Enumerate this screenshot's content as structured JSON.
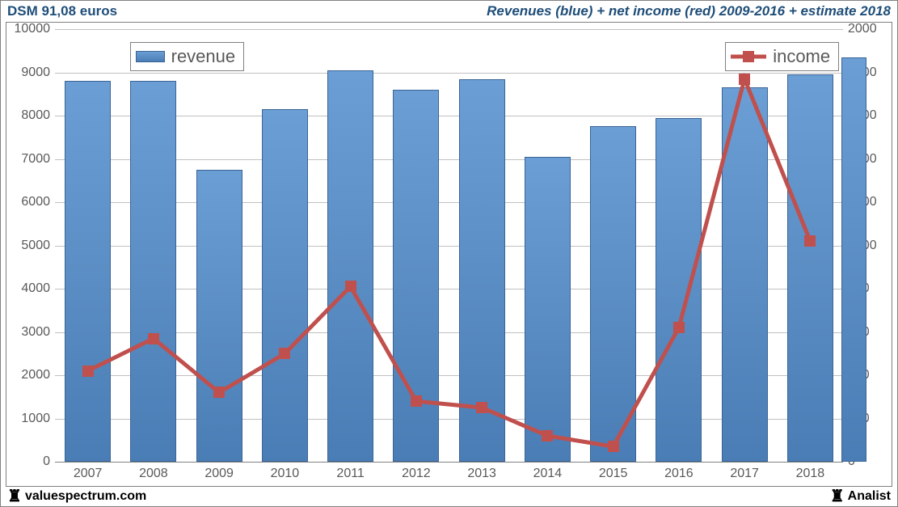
{
  "header": {
    "left": "DSM 91,08 euros",
    "right": "Revenues (blue) + net income (red) 2009-2016 + estimate 2018"
  },
  "footer": {
    "left": "valuespectrum.com",
    "right": "Analist"
  },
  "chart": {
    "type": "bar+line-dual-axis",
    "background_color": "#ffffff",
    "grid_color": "#c0c0c0",
    "axis_color": "#808080",
    "label_color": "#595959",
    "label_fontsize": 16,
    "legend_fontsize": 22,
    "categories": [
      "2007",
      "2008",
      "2009",
      "2010",
      "2011",
      "2012",
      "2013",
      "2014",
      "2015",
      "2016",
      "2017",
      "2018"
    ],
    "estimate_extra_bar": true,
    "revenue": {
      "values": [
        8800,
        8800,
        6750,
        8150,
        9050,
        8600,
        8850,
        7050,
        7750,
        7950,
        8650,
        8950
      ],
      "estimate_value": 9350,
      "bar_color_top": "#6a9ed4",
      "bar_color_bottom": "#4a7db5",
      "bar_border": "#3a6494",
      "bar_width_ratio": 0.7
    },
    "income": {
      "values": [
        420,
        570,
        320,
        500,
        810,
        280,
        250,
        120,
        70,
        620,
        1770,
        1020
      ],
      "line_color": "#c0504d",
      "line_width": 5,
      "marker_size": 14,
      "marker_shape": "square"
    },
    "y_left": {
      "min": 0,
      "max": 10000,
      "step": 1000
    },
    "y_right": {
      "min": 0,
      "max": 2000,
      "step": 200
    },
    "legend": {
      "revenue_label": "revenue",
      "income_label": "income",
      "revenue_pos": {
        "left_pct": 9.5,
        "top_pct": 3
      },
      "income_pos": {
        "right_pct": 0.5,
        "top_pct": 3
      }
    }
  }
}
